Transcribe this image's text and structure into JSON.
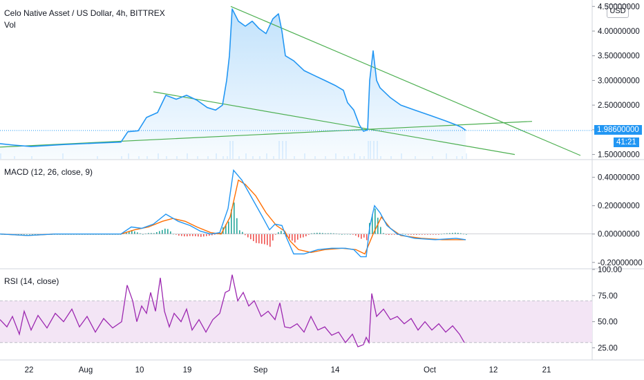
{
  "header": {
    "title": "Celo Native Asset / US Dollar, 4h, BITTREX",
    "vol_label": "Vol",
    "currency_button": "USD"
  },
  "last_price": {
    "value": "1.98600000",
    "countdown": "41:21",
    "color": "#2196f3"
  },
  "colors": {
    "price_line": "#2196f3",
    "trendline": "#4caf50",
    "macd_line": "#2196f3",
    "signal_line": "#ff6d00",
    "hist_pos": "#26a69a",
    "hist_neg": "#ef5350",
    "rsi_line": "#9c27b0",
    "rsi_band": "#f3e5f5"
  },
  "panes": {
    "macd_title": "MACD (12, 26, close, 9)",
    "rsi_title": "RSI (14, close)"
  },
  "chart_data": [
    {
      "type": "line",
      "name": "price",
      "ylim": [
        1.5,
        4.5
      ],
      "y_ticks": [
        "1.50000000",
        "2.00000000",
        "2.50000000",
        "3.00000000",
        "3.50000000",
        "4.00000000",
        "4.50000000"
      ],
      "x_ticks": [
        "22",
        "Aug",
        "10",
        "19",
        "Sep",
        "14",
        "Oct",
        "12",
        "21"
      ],
      "points": [
        [
          0,
          1.72
        ],
        [
          20,
          1.69
        ],
        [
          45,
          1.66
        ],
        [
          90,
          1.7
        ],
        [
          140,
          1.73
        ],
        [
          175,
          1.75
        ],
        [
          185,
          1.96
        ],
        [
          200,
          1.98
        ],
        [
          212,
          2.25
        ],
        [
          228,
          2.35
        ],
        [
          240,
          2.7
        ],
        [
          255,
          2.62
        ],
        [
          270,
          2.7
        ],
        [
          285,
          2.6
        ],
        [
          300,
          2.45
        ],
        [
          312,
          2.4
        ],
        [
          322,
          2.5
        ],
        [
          328,
          3.0
        ],
        [
          332,
          3.5
        ],
        [
          336,
          4.45
        ],
        [
          345,
          4.2
        ],
        [
          355,
          4.1
        ],
        [
          365,
          4.2
        ],
        [
          375,
          4.05
        ],
        [
          385,
          3.95
        ],
        [
          395,
          4.25
        ],
        [
          403,
          4.35
        ],
        [
          408,
          4.0
        ],
        [
          413,
          3.5
        ],
        [
          425,
          3.4
        ],
        [
          440,
          3.2
        ],
        [
          455,
          3.1
        ],
        [
          470,
          3.0
        ],
        [
          485,
          2.9
        ],
        [
          497,
          2.8
        ],
        [
          503,
          2.55
        ],
        [
          512,
          2.4
        ],
        [
          520,
          2.1
        ],
        [
          526,
          1.97
        ],
        [
          532,
          2.0
        ],
        [
          535,
          3.0
        ],
        [
          540,
          3.6
        ],
        [
          545,
          3.0
        ],
        [
          550,
          2.85
        ],
        [
          565,
          2.65
        ],
        [
          580,
          2.5
        ],
        [
          600,
          2.4
        ],
        [
          625,
          2.28
        ],
        [
          645,
          2.18
        ],
        [
          660,
          2.1
        ],
        [
          668,
          2.05
        ],
        [
          674,
          1.99
        ]
      ],
      "trendlines": [
        {
          "from": [
            334,
            4.5
          ],
          "to": [
            840,
            1.48
          ]
        },
        {
          "from": [
            222,
            2.77
          ],
          "to": [
            745,
            1.5
          ]
        },
        {
          "from": [
            0,
            1.65
          ],
          "to": [
            770,
            2.17
          ]
        }
      ]
    },
    {
      "type": "line",
      "name": "MACD (12, 26, close, 9)",
      "ylim": [
        -0.2,
        0.45
      ],
      "y_ticks": [
        "-0.20000000",
        "0.00000000",
        "0.20000000",
        "0.40000000"
      ],
      "series": [
        {
          "values": [
            [
              0,
              0.0
            ],
            [
              40,
              -0.01
            ],
            [
              80,
              0.0
            ],
            [
              120,
              0.0
            ],
            [
              175,
              0.0
            ],
            [
              190,
              0.05
            ],
            [
              205,
              0.04
            ],
            [
              222,
              0.07
            ],
            [
              240,
              0.14
            ],
            [
              258,
              0.09
            ],
            [
              275,
              0.06
            ],
            [
              290,
              0.02
            ],
            [
              305,
              0.0
            ],
            [
              318,
              0.01
            ],
            [
              330,
              0.18
            ],
            [
              338,
              0.45
            ],
            [
              350,
              0.38
            ],
            [
              365,
              0.25
            ],
            [
              380,
              0.12
            ],
            [
              390,
              0.03
            ],
            [
              398,
              0.07
            ],
            [
              408,
              0.06
            ],
            [
              415,
              -0.03
            ],
            [
              425,
              -0.14
            ],
            [
              440,
              -0.14
            ],
            [
              460,
              -0.11
            ],
            [
              480,
              -0.1
            ],
            [
              500,
              -0.1
            ],
            [
              512,
              -0.11
            ],
            [
              522,
              -0.16
            ],
            [
              530,
              -0.16
            ],
            [
              535,
              0.05
            ],
            [
              542,
              0.2
            ],
            [
              550,
              0.15
            ],
            [
              560,
              0.06
            ],
            [
              575,
              0.0
            ],
            [
              600,
              -0.03
            ],
            [
              630,
              -0.04
            ],
            [
              660,
              -0.03
            ],
            [
              674,
              -0.04
            ]
          ]
        },
        {
          "values": [
            [
              0,
              0.0
            ],
            [
              40,
              -0.01
            ],
            [
              80,
              0.0
            ],
            [
              120,
              0.0
            ],
            [
              175,
              0.0
            ],
            [
              195,
              0.03
            ],
            [
              215,
              0.05
            ],
            [
              235,
              0.09
            ],
            [
              250,
              0.11
            ],
            [
              268,
              0.09
            ],
            [
              285,
              0.05
            ],
            [
              305,
              0.01
            ],
            [
              320,
              0.0
            ],
            [
              333,
              0.12
            ],
            [
              345,
              0.38
            ],
            [
              355,
              0.35
            ],
            [
              370,
              0.27
            ],
            [
              385,
              0.15
            ],
            [
              400,
              0.06
            ],
            [
              412,
              0.02
            ],
            [
              420,
              -0.05
            ],
            [
              432,
              -0.11
            ],
            [
              450,
              -0.13
            ],
            [
              470,
              -0.11
            ],
            [
              495,
              -0.1
            ],
            [
              515,
              -0.11
            ],
            [
              528,
              -0.14
            ],
            [
              540,
              0.0
            ],
            [
              552,
              0.12
            ],
            [
              565,
              0.04
            ],
            [
              580,
              -0.01
            ],
            [
              610,
              -0.03
            ],
            [
              640,
              -0.04
            ],
            [
              674,
              -0.04
            ]
          ]
        }
      ]
    },
    {
      "type": "line",
      "name": "RSI (14, close)",
      "ylim": [
        14,
        100
      ],
      "y_ticks": [
        "25.00",
        "50.00",
        "75.00",
        "100.00"
      ],
      "band": [
        30,
        70
      ],
      "series": [
        {
          "values": [
            [
              0,
              52
            ],
            [
              10,
              45
            ],
            [
              18,
              55
            ],
            [
              28,
              38
            ],
            [
              35,
              60
            ],
            [
              45,
              42
            ],
            [
              55,
              56
            ],
            [
              68,
              44
            ],
            [
              80,
              58
            ],
            [
              92,
              50
            ],
            [
              104,
              62
            ],
            [
              115,
              45
            ],
            [
              126,
              55
            ],
            [
              138,
              40
            ],
            [
              150,
              53
            ],
            [
              163,
              44
            ],
            [
              176,
              50
            ],
            [
              184,
              85
            ],
            [
              192,
              70
            ],
            [
              198,
              50
            ],
            [
              205,
              65
            ],
            [
              212,
              58
            ],
            [
              218,
              78
            ],
            [
              225,
              60
            ],
            [
              232,
              92
            ],
            [
              238,
              60
            ],
            [
              245,
              45
            ],
            [
              252,
              58
            ],
            [
              262,
              50
            ],
            [
              270,
              62
            ],
            [
              278,
              42
            ],
            [
              288,
              52
            ],
            [
              298,
              40
            ],
            [
              308,
              52
            ],
            [
              318,
              58
            ],
            [
              326,
              78
            ],
            [
              332,
              80
            ],
            [
              336,
              95
            ],
            [
              344,
              70
            ],
            [
              352,
              78
            ],
            [
              360,
              65
            ],
            [
              368,
              70
            ],
            [
              378,
              55
            ],
            [
              388,
              60
            ],
            [
              398,
              52
            ],
            [
              405,
              68
            ],
            [
              412,
              45
            ],
            [
              420,
              44
            ],
            [
              430,
              48
            ],
            [
              440,
              40
            ],
            [
              450,
              55
            ],
            [
              460,
              42
            ],
            [
              470,
              45
            ],
            [
              480,
              37
            ],
            [
              490,
              40
            ],
            [
              500,
              30
            ],
            [
              510,
              38
            ],
            [
              518,
              26
            ],
            [
              526,
              28
            ],
            [
              530,
              35
            ],
            [
              534,
              30
            ],
            [
              538,
              77
            ],
            [
              545,
              55
            ],
            [
              555,
              62
            ],
            [
              565,
              52
            ],
            [
              575,
              55
            ],
            [
              585,
              48
            ],
            [
              595,
              53
            ],
            [
              605,
              42
            ],
            [
              615,
              50
            ],
            [
              625,
              42
            ],
            [
              635,
              48
            ],
            [
              645,
              40
            ],
            [
              655,
              46
            ],
            [
              665,
              38
            ],
            [
              672,
              30
            ]
          ]
        }
      ]
    }
  ]
}
